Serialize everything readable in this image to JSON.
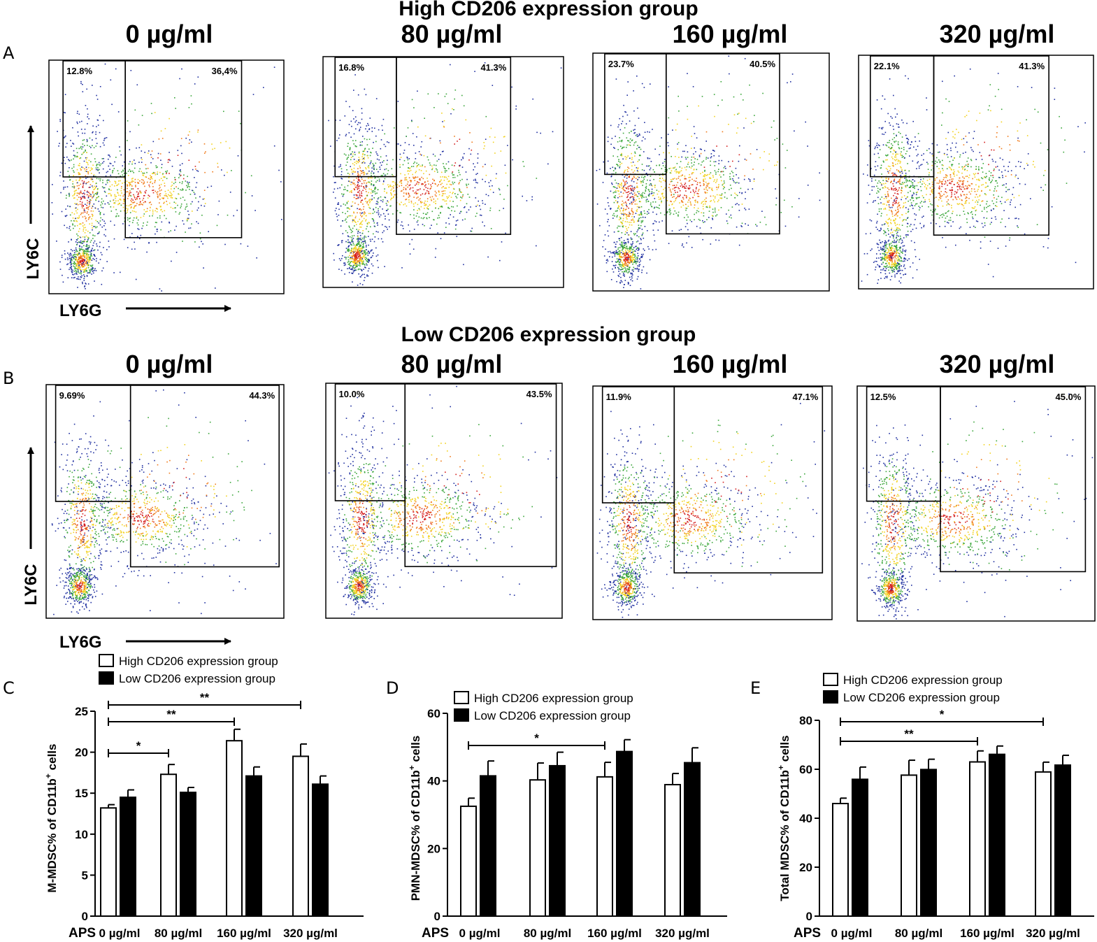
{
  "panel_letters": [
    "A",
    "B",
    "C",
    "D",
    "E"
  ],
  "flow": {
    "rows": [
      {
        "title": "High CD206 expression group",
        "concentrations": [
          "0 µg/ml",
          "80 µg/ml",
          "160 µg/ml",
          "320 µg/ml"
        ],
        "gate_left": [
          "12.8%",
          "16.8%",
          "23.7%",
          "22.1%"
        ],
        "gate_right": [
          "36,4%",
          "41.3%",
          "40.5%",
          "41.3%"
        ]
      },
      {
        "title": "Low CD206 expression group",
        "concentrations": [
          "0 µg/ml",
          "80 µg/ml",
          "160 µg/ml",
          "320 µg/ml"
        ],
        "gate_left": [
          "9.69%",
          "10.0%",
          "11.9%",
          "12.5%"
        ],
        "gate_right": [
          "44.3%",
          "43.5%",
          "47.1%",
          "45.0%"
        ]
      }
    ],
    "y_axis_label": "LY6C",
    "x_axis_label": "LY6G"
  },
  "chart_data": [
    {
      "type": "bar",
      "panel": "C",
      "ylabel": "M-MDSC% of CD11b+ cells",
      "ylabel_main": "M-MDSC% of CD11b",
      "ylabel_sup": "+",
      "ylabel_tail": " cells",
      "xlabel": "APS",
      "categories": [
        "0 µg/ml",
        "80 µg/ml",
        "160 µg/ml",
        "320 µg/ml"
      ],
      "ylim": [
        0,
        25
      ],
      "yticks": [
        0,
        5,
        10,
        15,
        20,
        25
      ],
      "series": [
        {
          "name": "High CD206 expression group",
          "values": [
            13.2,
            17.3,
            21.4,
            19.5
          ],
          "errors": [
            0.4,
            1.2,
            1.4,
            1.5
          ]
        },
        {
          "name": "Low CD206 expression group",
          "values": [
            14.5,
            15.1,
            17.1,
            16.1
          ],
          "errors": [
            0.9,
            0.6,
            1.1,
            1.0
          ]
        }
      ],
      "significance": [
        {
          "from": 0,
          "to": 1,
          "label": "*"
        },
        {
          "from": 0,
          "to": 2,
          "label": "**"
        },
        {
          "from": 0,
          "to": 3,
          "label": "**"
        }
      ]
    },
    {
      "type": "bar",
      "panel": "D",
      "ylabel": "PMN-MDSC% of CD11b+ cells",
      "ylabel_main": "PMN-MDSC% of CD11b",
      "ylabel_sup": "+",
      "ylabel_tail": " cells",
      "xlabel": "APS",
      "categories": [
        "0 µg/ml",
        "80 µg/ml",
        "160 µg/ml",
        "320 µg/ml"
      ],
      "ylim": [
        0,
        60
      ],
      "yticks": [
        0,
        20,
        40,
        60
      ],
      "series": [
        {
          "name": "High CD206 expression group",
          "values": [
            32.5,
            40.3,
            41.2,
            38.9
          ],
          "errors": [
            2.4,
            5.0,
            4.3,
            3.3
          ]
        },
        {
          "name": "Low CD206 expression group",
          "values": [
            41.5,
            44.5,
            48.7,
            45.4
          ],
          "errors": [
            4.4,
            4.0,
            3.5,
            4.4
          ]
        }
      ],
      "significance": [
        {
          "from": 0,
          "to": 2,
          "label": "*"
        }
      ]
    },
    {
      "type": "bar",
      "panel": "E",
      "ylabel": "Total MDSC% of CD11b+ cells",
      "ylabel_main": "Total MDSC% of CD11b",
      "ylabel_sup": "+",
      "ylabel_tail": " cells",
      "xlabel": "APS",
      "categories": [
        "0 µg/ml",
        "80 µg/ml",
        "160 µg/ml",
        "320 µg/ml"
      ],
      "ylim": [
        0,
        80
      ],
      "yticks": [
        0,
        20,
        40,
        60,
        80
      ],
      "series": [
        {
          "name": "High CD206 expression group",
          "values": [
            46.0,
            57.6,
            63.0,
            58.9
          ],
          "errors": [
            2.2,
            6.1,
            4.5,
            4.0
          ]
        },
        {
          "name": "Low CD206 expression group",
          "values": [
            55.9,
            59.9,
            66.1,
            61.7
          ],
          "errors": [
            5.0,
            4.2,
            3.4,
            4.0
          ]
        }
      ],
      "significance": [
        {
          "from": 0,
          "to": 2,
          "label": "**"
        },
        {
          "from": 0,
          "to": 3,
          "label": "*"
        }
      ]
    }
  ]
}
